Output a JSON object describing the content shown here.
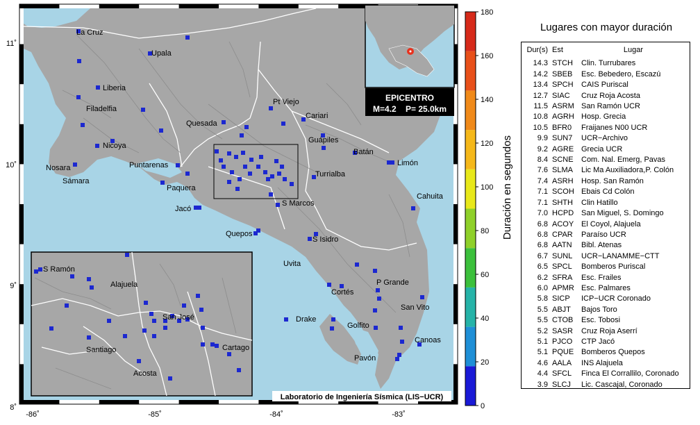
{
  "axes": {
    "lon_ticks": [
      "-86˚",
      "-85˚",
      "-84˚",
      "-83˚"
    ],
    "lat_ticks": [
      "11˚",
      "10˚",
      "9˚",
      "8˚"
    ]
  },
  "cities": [
    {
      "name": "La Cruz"
    },
    {
      "name": "Upala"
    },
    {
      "name": "Liberia"
    },
    {
      "name": "Filadelfia"
    },
    {
      "name": "Nicoya"
    },
    {
      "name": "Nosara"
    },
    {
      "name": "Sámara"
    },
    {
      "name": "Puntarenas"
    },
    {
      "name": "Paquera"
    },
    {
      "name": "Jacó"
    },
    {
      "name": "Quesada"
    },
    {
      "name": "Pt Viejo"
    },
    {
      "name": "Cariari"
    },
    {
      "name": "Guápiles"
    },
    {
      "name": "Batán"
    },
    {
      "name": "Limón"
    },
    {
      "name": "Turrialba"
    },
    {
      "name": "Cahuita"
    },
    {
      "name": "S Marcos"
    },
    {
      "name": "Quepos"
    },
    {
      "name": "S Isidro"
    },
    {
      "name": "Uvita"
    },
    {
      "name": "P Grande"
    },
    {
      "name": "Cortés"
    },
    {
      "name": "San Vito"
    },
    {
      "name": "Drake"
    },
    {
      "name": "Golfito"
    },
    {
      "name": "Canoas"
    },
    {
      "name": "Pavón"
    }
  ],
  "inset": {
    "cities": [
      {
        "name": "S Ramón"
      },
      {
        "name": "Alajuela"
      },
      {
        "name": "San José"
      },
      {
        "name": "Santiago"
      },
      {
        "name": "Cartago"
      },
      {
        "name": "Acosta"
      }
    ]
  },
  "epicenter": {
    "label": "EPICENTRO",
    "info": "M=4.2    P= 25.0km",
    "marker_color": "#e8321e"
  },
  "credit": "Laboratorio de Ingeniería Sísmica (LIS−UCR)",
  "colorbar": {
    "title": "Duración en segundos",
    "ticks": [
      "0",
      "20",
      "40",
      "60",
      "80",
      "100",
      "120",
      "140",
      "160",
      "180"
    ],
    "colors": [
      "#1a1ad6",
      "#1f8fd6",
      "#26b3a8",
      "#3cc03c",
      "#8fd02a",
      "#e8e81a",
      "#f5b81a",
      "#f08a1a",
      "#e8501a",
      "#d62a1a"
    ]
  },
  "colors": {
    "sea": "#a8d4e6",
    "land": "#a7a7a7",
    "station": "#1c28d0",
    "border": "#ffffff"
  },
  "table": {
    "title": "Lugares con mayor duración",
    "headers": {
      "dur": "Dur(s)",
      "est": "Est",
      "lugar": "Lugar"
    },
    "rows": [
      {
        "dur": "14.3",
        "est": "STCH",
        "lugar": "Clin. Turrubares"
      },
      {
        "dur": "14.2",
        "est": "SBEB",
        "lugar": "Esc. Bebedero, Escazú"
      },
      {
        "dur": "13.4",
        "est": "SPCH",
        "lugar": "CAIS Puriscal"
      },
      {
        "dur": "12.7",
        "est": "SIAC",
        "lugar": "Cruz Roja Acosta"
      },
      {
        "dur": "11.5",
        "est": "ASRM",
        "lugar": "San Ramón UCR"
      },
      {
        "dur": "10.8",
        "est": "AGRH",
        "lugar": "Hosp. Grecia"
      },
      {
        "dur": "10.5",
        "est": "BFR0",
        "lugar": "Fraijanes N00 UCR"
      },
      {
        "dur": "9.9",
        "est": "SUN7",
        "lugar": "UCR−Archivo"
      },
      {
        "dur": "9.2",
        "est": "AGRE",
        "lugar": "Grecia UCR"
      },
      {
        "dur": "8.4",
        "est": "SCNE",
        "lugar": "Com. Nal. Emerg, Pavas"
      },
      {
        "dur": "7.6",
        "est": "SLMA",
        "lugar": "Lic Ma Auxiliadora,P. Colón"
      },
      {
        "dur": "7.4",
        "est": "ASRH",
        "lugar": "Hosp. San Ramón"
      },
      {
        "dur": "7.1",
        "est": "SCOH",
        "lugar": "Ebais Cd Colón"
      },
      {
        "dur": "7.1",
        "est": "SHTH",
        "lugar": "Clin Hatillo"
      },
      {
        "dur": "7.0",
        "est": "HCPD",
        "lugar": "San Miguel, S. Domingo"
      },
      {
        "dur": "6.8",
        "est": "ACOY",
        "lugar": "El Coyol, Alajuela"
      },
      {
        "dur": "6.8",
        "est": "CPAR",
        "lugar": "Paraíso UCR"
      },
      {
        "dur": "6.8",
        "est": "AATN",
        "lugar": "Bibl. Atenas"
      },
      {
        "dur": "6.7",
        "est": "SUNL",
        "lugar": "UCR−LANAMME−CTT"
      },
      {
        "dur": "6.5",
        "est": "SPCL",
        "lugar": "Bomberos Puriscal"
      },
      {
        "dur": "6.2",
        "est": "SFRA",
        "lugar": "Esc. Frailes"
      },
      {
        "dur": "6.0",
        "est": "APMR",
        "lugar": "Esc. Palmares"
      },
      {
        "dur": "5.8",
        "est": "SICP",
        "lugar": "ICP−UCR Coronado"
      },
      {
        "dur": "5.5",
        "est": "ABJT",
        "lugar": "Bajos Toro"
      },
      {
        "dur": "5.5",
        "est": "CTOB",
        "lugar": "Esc. Tobosi"
      },
      {
        "dur": "5.2",
        "est": "SASR",
        "lugar": "Cruz Roja Aserrí"
      },
      {
        "dur": "5.1",
        "est": "PJCO",
        "lugar": "CTP Jacó"
      },
      {
        "dur": "5.1",
        "est": "PQUE",
        "lugar": "Bomberos Quepos"
      },
      {
        "dur": "4.6",
        "est": "AALA",
        "lugar": "INS Alajuela"
      },
      {
        "dur": "4.4",
        "est": "SFCL",
        "lugar": "Finca El Corrallilo, Coronado"
      },
      {
        "dur": "3.9",
        "est": "SLCJ",
        "lugar": "Lic. Cascajal, Coronado"
      }
    ]
  }
}
